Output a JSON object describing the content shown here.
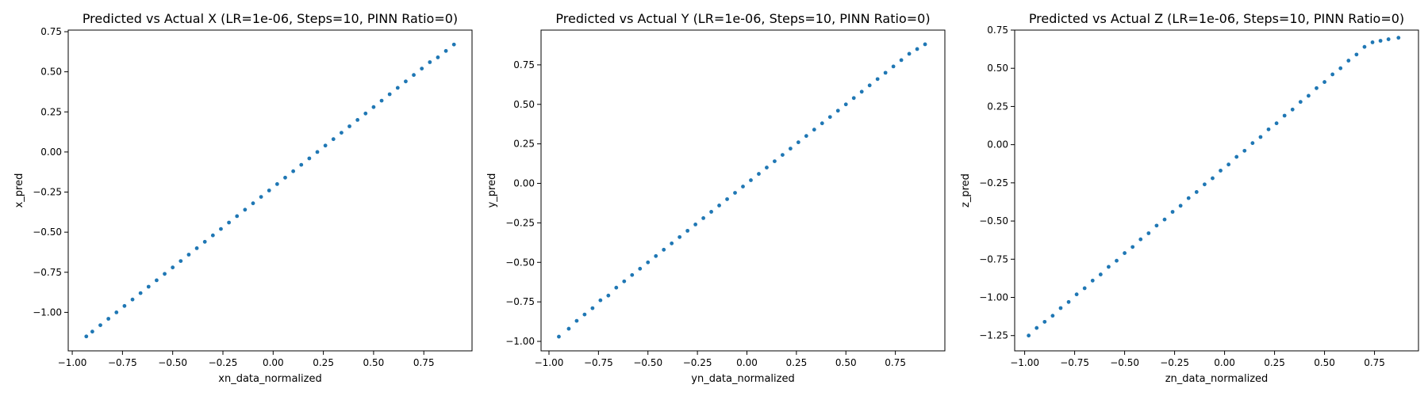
{
  "chart_data": [
    {
      "type": "scatter",
      "title": "Predicted vs Actual X (LR=1e-06, Steps=10, PINN Ratio=0)",
      "xlabel": "xn_data_normalized",
      "ylabel": "x_pred",
      "xlim": [
        -1.02,
        0.99
      ],
      "ylim": [
        -1.24,
        0.76
      ],
      "xticks": [
        -1.0,
        -0.75,
        -0.5,
        -0.25,
        0.0,
        0.25,
        0.5,
        0.75
      ],
      "xtick_labels": [
        "−1.00",
        "−0.75",
        "−0.50",
        "−0.25",
        "0.00",
        "0.25",
        "0.50",
        "0.75"
      ],
      "yticks": [
        -1.0,
        -0.75,
        -0.5,
        -0.25,
        0.0,
        0.25,
        0.5,
        0.75
      ],
      "ytick_labels": [
        "−1.00",
        "−0.75",
        "−0.50",
        "−0.25",
        "0.00",
        "0.25",
        "0.50",
        "0.75"
      ],
      "grid": false,
      "color": "#1f77b4",
      "x": [
        -0.93,
        -0.9,
        -0.86,
        -0.82,
        -0.78,
        -0.74,
        -0.7,
        -0.66,
        -0.62,
        -0.58,
        -0.54,
        -0.5,
        -0.46,
        -0.42,
        -0.38,
        -0.34,
        -0.3,
        -0.26,
        -0.22,
        -0.18,
        -0.14,
        -0.1,
        -0.06,
        -0.02,
        0.02,
        0.06,
        0.1,
        0.14,
        0.18,
        0.22,
        0.26,
        0.3,
        0.34,
        0.38,
        0.42,
        0.46,
        0.5,
        0.54,
        0.58,
        0.62,
        0.66,
        0.7,
        0.74,
        0.78,
        0.82,
        0.86,
        0.9
      ],
      "y": [
        -1.15,
        -1.12,
        -1.08,
        -1.04,
        -1.0,
        -0.96,
        -0.92,
        -0.88,
        -0.84,
        -0.8,
        -0.76,
        -0.72,
        -0.68,
        -0.64,
        -0.6,
        -0.56,
        -0.52,
        -0.48,
        -0.44,
        -0.4,
        -0.36,
        -0.32,
        -0.28,
        -0.24,
        -0.2,
        -0.16,
        -0.12,
        -0.08,
        -0.04,
        0.0,
        0.04,
        0.08,
        0.12,
        0.16,
        0.2,
        0.24,
        0.28,
        0.32,
        0.36,
        0.4,
        0.44,
        0.48,
        0.52,
        0.56,
        0.59,
        0.63,
        0.67
      ]
    },
    {
      "type": "scatter",
      "title": "Predicted vs Actual Y (LR=1e-06, Steps=10, PINN Ratio=0)",
      "xlabel": "yn_data_normalized",
      "ylabel": "y_pred",
      "xlim": [
        -1.04,
        1.0
      ],
      "ylim": [
        -1.06,
        0.97
      ],
      "xticks": [
        -1.0,
        -0.75,
        -0.5,
        -0.25,
        0.0,
        0.25,
        0.5,
        0.75
      ],
      "xtick_labels": [
        "−1.00",
        "−0.75",
        "−0.50",
        "−0.25",
        "0.00",
        "0.25",
        "0.50",
        "0.75"
      ],
      "yticks": [
        -1.0,
        -0.75,
        -0.5,
        -0.25,
        0.0,
        0.25,
        0.5,
        0.75
      ],
      "ytick_labels": [
        "−1.00",
        "−0.75",
        "−0.50",
        "−0.25",
        "0.00",
        "0.25",
        "0.50",
        "0.75"
      ],
      "grid": false,
      "color": "#1f77b4",
      "x": [
        -0.95,
        -0.9,
        -0.86,
        -0.82,
        -0.78,
        -0.74,
        -0.7,
        -0.66,
        -0.62,
        -0.58,
        -0.54,
        -0.5,
        -0.46,
        -0.42,
        -0.38,
        -0.34,
        -0.3,
        -0.26,
        -0.22,
        -0.18,
        -0.14,
        -0.1,
        -0.06,
        -0.02,
        0.02,
        0.06,
        0.1,
        0.14,
        0.18,
        0.22,
        0.26,
        0.3,
        0.34,
        0.38,
        0.42,
        0.46,
        0.5,
        0.54,
        0.58,
        0.62,
        0.66,
        0.7,
        0.74,
        0.78,
        0.82,
        0.86,
        0.9
      ],
      "y": [
        -0.97,
        -0.92,
        -0.87,
        -0.83,
        -0.79,
        -0.74,
        -0.71,
        -0.66,
        -0.62,
        -0.58,
        -0.54,
        -0.5,
        -0.46,
        -0.42,
        -0.38,
        -0.34,
        -0.3,
        -0.26,
        -0.22,
        -0.18,
        -0.14,
        -0.1,
        -0.06,
        -0.02,
        0.02,
        0.06,
        0.1,
        0.14,
        0.18,
        0.22,
        0.26,
        0.3,
        0.34,
        0.38,
        0.42,
        0.46,
        0.5,
        0.54,
        0.58,
        0.62,
        0.66,
        0.7,
        0.74,
        0.78,
        0.82,
        0.85,
        0.88
      ]
    },
    {
      "type": "scatter",
      "title": "Predicted vs Actual Z (LR=1e-06, Steps=10, PINN Ratio=0)",
      "xlabel": "zn_data_normalized",
      "ylabel": "z_pred",
      "xlim": [
        -1.05,
        0.97
      ],
      "ylim": [
        -1.35,
        0.75
      ],
      "xticks": [
        -1.0,
        -0.75,
        -0.5,
        -0.25,
        0.0,
        0.25,
        0.5,
        0.75
      ],
      "xtick_labels": [
        "−1.00",
        "−0.75",
        "−0.50",
        "−0.25",
        "0.00",
        "0.25",
        "0.50",
        "0.75"
      ],
      "yticks": [
        -1.25,
        -1.0,
        -0.75,
        -0.5,
        -0.25,
        0.0,
        0.25,
        0.5,
        0.75
      ],
      "ytick_labels": [
        "−1.25",
        "−1.00",
        "−0.75",
        "−0.50",
        "−0.25",
        "0.00",
        "0.25",
        "0.50",
        "0.75"
      ],
      "grid": false,
      "color": "#1f77b4",
      "x": [
        -0.98,
        -0.94,
        -0.9,
        -0.86,
        -0.82,
        -0.78,
        -0.74,
        -0.7,
        -0.66,
        -0.62,
        -0.58,
        -0.54,
        -0.5,
        -0.46,
        -0.42,
        -0.38,
        -0.34,
        -0.3,
        -0.26,
        -0.22,
        -0.18,
        -0.14,
        -0.1,
        -0.06,
        -0.02,
        0.02,
        0.06,
        0.1,
        0.14,
        0.18,
        0.22,
        0.26,
        0.3,
        0.34,
        0.38,
        0.42,
        0.46,
        0.5,
        0.54,
        0.58,
        0.62,
        0.66,
        0.7,
        0.74,
        0.78,
        0.82,
        0.87
      ],
      "y": [
        -1.25,
        -1.2,
        -1.16,
        -1.12,
        -1.07,
        -1.03,
        -0.98,
        -0.94,
        -0.89,
        -0.85,
        -0.8,
        -0.76,
        -0.71,
        -0.67,
        -0.62,
        -0.58,
        -0.53,
        -0.49,
        -0.44,
        -0.4,
        -0.35,
        -0.31,
        -0.26,
        -0.22,
        -0.17,
        -0.13,
        -0.08,
        -0.04,
        0.01,
        0.05,
        0.1,
        0.14,
        0.19,
        0.23,
        0.28,
        0.32,
        0.37,
        0.41,
        0.46,
        0.5,
        0.55,
        0.59,
        0.64,
        0.67,
        0.68,
        0.69,
        0.7
      ]
    }
  ]
}
